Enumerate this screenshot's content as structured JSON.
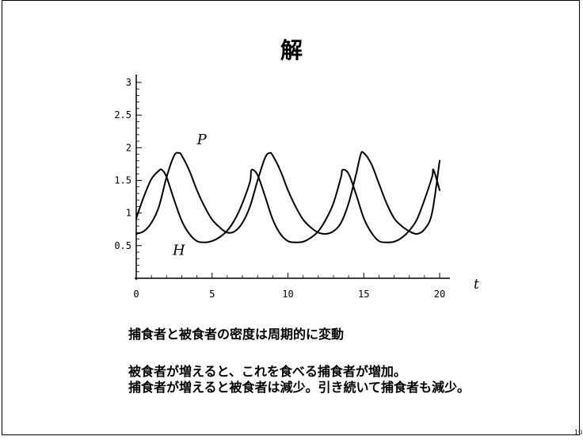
{
  "slide": {
    "title": "解",
    "captions": [
      "捕食者と被食者の密度は周期的に変動",
      "被食者が増えると、これを食べる捕食者が増加。",
      "捕食者が増えると被食者は減少。引き続いて捕食者も減少。"
    ],
    "page_number": "10"
  },
  "chart_data": {
    "type": "line",
    "title": "",
    "xlabel": "t",
    "ylabel": "",
    "xlim": [
      0,
      20
    ],
    "ylim": [
      0,
      3
    ],
    "xticks": [
      0,
      5,
      10,
      15,
      20
    ],
    "xtick_labels": [
      "0",
      "5",
      "10",
      "15",
      "20"
    ],
    "yticks": [
      0.5,
      1,
      1.5,
      2,
      2.5,
      3
    ],
    "ytick_labels": [
      "0.5",
      "1",
      "1.5",
      "2",
      "2.5",
      "3"
    ],
    "grid": false,
    "series": [
      {
        "name": "H",
        "x": [
          0,
          0.5,
          1,
          1.5,
          1.7,
          2,
          2.5,
          3,
          3.5,
          4,
          4.5,
          5,
          5.5,
          6,
          6.5,
          7,
          7.5,
          7.6,
          8,
          8.5,
          9,
          9.5,
          10,
          10.5,
          11,
          11.5,
          12,
          12.5,
          13,
          13.5,
          13.6,
          14,
          14.5,
          15,
          15.5,
          16,
          16.5,
          17,
          17.5,
          18,
          18.5,
          19,
          19.5,
          19.6,
          20
        ],
        "values": [
          0.92,
          1.25,
          1.52,
          1.65,
          1.66,
          1.55,
          1.2,
          0.88,
          0.68,
          0.57,
          0.55,
          0.57,
          0.63,
          0.73,
          0.9,
          1.15,
          1.48,
          1.66,
          1.58,
          1.25,
          0.9,
          0.68,
          0.57,
          0.55,
          0.56,
          0.62,
          0.72,
          0.9,
          1.15,
          1.55,
          1.66,
          1.6,
          1.28,
          0.92,
          0.7,
          0.57,
          0.55,
          0.56,
          0.62,
          0.73,
          0.9,
          1.2,
          1.55,
          1.66,
          1.35
        ]
      },
      {
        "name": "P",
        "x": [
          0,
          0.5,
          1,
          1.5,
          2,
          2.5,
          2.8,
          3,
          3.5,
          4,
          4.5,
          5,
          5.5,
          6,
          6.5,
          7,
          7.5,
          8,
          8.5,
          8.8,
          9,
          9.5,
          10,
          10.5,
          11,
          11.5,
          12,
          12.5,
          13,
          13.5,
          14,
          14.5,
          14.8,
          15,
          15.5,
          16,
          16.5,
          17,
          17.5,
          18,
          18.5,
          19,
          19.5,
          20
        ],
        "values": [
          0.68,
          0.72,
          0.85,
          1.1,
          1.55,
          1.88,
          1.92,
          1.88,
          1.65,
          1.35,
          1.1,
          0.9,
          0.78,
          0.7,
          0.72,
          0.85,
          1.1,
          1.5,
          1.85,
          1.92,
          1.88,
          1.65,
          1.35,
          1.1,
          0.9,
          0.78,
          0.7,
          0.68,
          0.72,
          0.85,
          1.15,
          1.6,
          1.9,
          1.92,
          1.75,
          1.45,
          1.15,
          0.92,
          0.8,
          0.72,
          0.68,
          0.75,
          1.0,
          1.8
        ]
      }
    ],
    "series_labels": [
      {
        "text": "P",
        "x": 4.0,
        "y": 2.05
      },
      {
        "text": "H",
        "x": 2.4,
        "y": 0.36
      }
    ]
  }
}
